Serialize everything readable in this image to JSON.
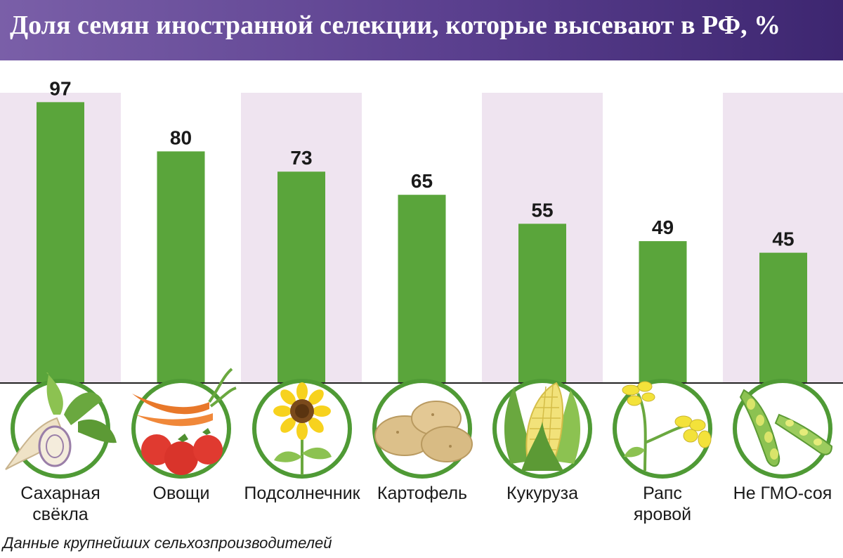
{
  "chart_data": {
    "type": "bar",
    "title": "Доля семян иностранной селекции, которые высевают в РФ, %",
    "categories": [
      "Сахарная свёкла",
      "Овощи",
      "Подсолнечник",
      "Картофель",
      "Кукуруза",
      "Рапс яровой",
      "Не ГМО-соя"
    ],
    "values": [
      97,
      80,
      73,
      65,
      55,
      49,
      45
    ],
    "ylim": [
      0,
      100
    ],
    "grid": false,
    "legend": "none"
  },
  "labels": {
    "cat_0_line1": "Сахарная",
    "cat_0_line2": "свёкла",
    "cat_1_line1": "Овощи",
    "cat_2_line1": "Подсолнечник",
    "cat_3_line1": "Картофель",
    "cat_4_line1": "Кукуруза",
    "cat_5_line1": "Рапс",
    "cat_5_line2": "яровой",
    "cat_6_line1": "Не ГМО-соя"
  },
  "icons": [
    "sugar-beet-icon",
    "vegetables-icon",
    "sunflower-icon",
    "potato-icon",
    "corn-icon",
    "rapeseed-icon",
    "soybean-icon"
  ],
  "source": "Данные крупнейших сельхозпроизводителей",
  "colors": {
    "bar": "#5aa53b",
    "band": "#efe4f0",
    "title_bg": "#5a3f8e",
    "icon_ring": "#4f9a35"
  }
}
